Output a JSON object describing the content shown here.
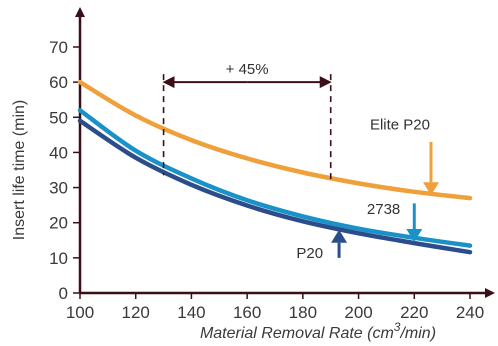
{
  "chart_data": {
    "type": "line",
    "title": "",
    "xlabel": "Material Removal Rate (cm3/min)",
    "xlabel_parts": {
      "prefix": "Material Removal Rate (cm",
      "superscript": "3",
      "suffix": "/min)"
    },
    "ylabel": "Insert life time (min)",
    "xlim": [
      100,
      240
    ],
    "ylim": [
      0,
      70
    ],
    "x_ticks": [
      "100",
      "120",
      "140",
      "160",
      "180",
      "200",
      "220",
      "240"
    ],
    "y_ticks": [
      "0",
      "10",
      "20",
      "30",
      "40",
      "50",
      "60",
      "70"
    ],
    "grid": false,
    "legend": "none",
    "series": [
      {
        "name": "Elite P20",
        "color": "#f0a03a",
        "x": [
          100,
          120,
          140,
          160,
          180,
          200,
          220,
          240
        ],
        "y": [
          60,
          50.5,
          43.5,
          38.3,
          34.3,
          31.2,
          28.8,
          27
        ]
      },
      {
        "name": "2738",
        "color": "#1a92c8",
        "x": [
          100,
          120,
          140,
          160,
          180,
          200,
          220,
          240
        ],
        "y": [
          52,
          40.5,
          32.6,
          26.4,
          21.8,
          18.3,
          15.7,
          13.5
        ]
      },
      {
        "name": "P20",
        "color": "#2b4d8c",
        "x": [
          100,
          120,
          140,
          160,
          180,
          200,
          220,
          240
        ],
        "y": [
          49,
          38.5,
          30.8,
          24.9,
          20.4,
          17,
          14.2,
          11.6
        ]
      }
    ],
    "annotations": [
      {
        "text": "+ 45%",
        "from_x": 130,
        "to_x": 190,
        "y": 60,
        "dash_from_y": 33.5,
        "dash_to_y": 31.5,
        "color": "#3b0f18"
      }
    ],
    "series_arrows": [
      {
        "series": "Elite P20",
        "color": "#f0a03a",
        "x": 226,
        "from_y": 43,
        "to_y": 27.8,
        "direction": "down",
        "label": "Elite P20"
      },
      {
        "series": "2738",
        "color": "#1a92c8",
        "x": 220,
        "from_y": 25.5,
        "to_y": 14.5,
        "direction": "down",
        "label": "2738"
      },
      {
        "series": "P20",
        "color": "#2b4d8c",
        "x": 193,
        "from_y": 10,
        "to_y": 18,
        "direction": "up",
        "label": "P20"
      }
    ]
  }
}
